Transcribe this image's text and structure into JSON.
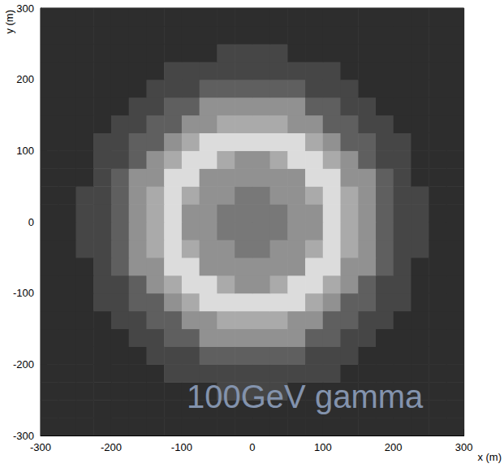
{
  "chart_data": {
    "type": "heatmap",
    "annotation": "100GeV gamma",
    "xlabel": "x (m)",
    "ylabel": "y (m)",
    "xlim": [
      -300,
      300
    ],
    "ylim": [
      -300,
      300
    ],
    "xticks": [
      -300,
      -200,
      -100,
      0,
      100,
      200,
      300
    ],
    "yticks": [
      -300,
      -200,
      -100,
      0,
      100,
      200,
      300
    ],
    "grid": false,
    "x_bins": [
      -300,
      -275,
      -250,
      -225,
      -200,
      -175,
      -150,
      -125,
      -100,
      -75,
      -50,
      -25,
      0,
      25,
      50,
      75,
      100,
      125,
      150,
      175,
      200,
      225,
      250,
      275,
      300
    ],
    "y_bins": [
      -300,
      -275,
      -250,
      -225,
      -200,
      -175,
      -150,
      -125,
      -100,
      -75,
      -50,
      -25,
      0,
      25,
      50,
      75,
      100,
      125,
      150,
      175,
      200,
      225,
      250,
      275,
      300
    ],
    "color_range": [
      0,
      9
    ],
    "cells": [
      [
        1,
        1,
        1,
        1,
        1,
        1,
        1,
        1,
        1,
        1,
        1,
        1,
        1,
        1,
        1,
        1,
        1,
        1,
        1,
        1,
        1,
        1,
        1,
        1
      ],
      [
        1,
        1,
        1,
        1,
        1,
        1,
        1,
        1,
        1,
        1,
        1,
        1,
        1,
        1,
        1,
        1,
        1,
        1,
        1,
        1,
        1,
        1,
        1,
        1
      ],
      [
        1,
        1,
        1,
        1,
        1,
        1,
        1,
        1,
        1,
        1,
        2,
        2,
        2,
        2,
        1,
        1,
        1,
        1,
        1,
        1,
        1,
        1,
        1,
        1
      ],
      [
        1,
        1,
        1,
        1,
        1,
        1,
        1,
        2,
        2,
        2,
        2,
        2,
        2,
        2,
        2,
        2,
        2,
        1,
        1,
        1,
        1,
        1,
        1,
        1
      ],
      [
        1,
        1,
        1,
        1,
        1,
        1,
        2,
        2,
        2,
        3,
        3,
        3,
        3,
        3,
        3,
        2,
        2,
        2,
        1,
        1,
        1,
        1,
        1,
        1
      ],
      [
        1,
        1,
        1,
        1,
        1,
        2,
        2,
        3,
        3,
        5,
        5,
        5,
        5,
        5,
        5,
        3,
        3,
        2,
        2,
        1,
        1,
        1,
        1,
        1
      ],
      [
        1,
        1,
        1,
        1,
        2,
        2,
        3,
        3,
        5,
        5,
        6,
        6,
        6,
        6,
        5,
        5,
        3,
        3,
        2,
        2,
        1,
        1,
        1,
        1
      ],
      [
        1,
        1,
        1,
        2,
        2,
        3,
        3,
        5,
        6,
        8,
        8,
        8,
        8,
        8,
        8,
        6,
        5,
        3,
        3,
        2,
        2,
        1,
        1,
        1
      ],
      [
        1,
        1,
        1,
        2,
        2,
        3,
        5,
        6,
        8,
        8,
        6,
        5,
        5,
        6,
        8,
        8,
        6,
        5,
        3,
        2,
        2,
        1,
        1,
        1
      ],
      [
        1,
        1,
        1,
        2,
        3,
        5,
        5,
        8,
        8,
        5,
        5,
        5,
        5,
        5,
        5,
        8,
        8,
        5,
        5,
        3,
        2,
        1,
        1,
        1
      ],
      [
        1,
        1,
        2,
        2,
        3,
        5,
        6,
        8,
        6,
        5,
        5,
        4,
        4,
        5,
        5,
        6,
        8,
        6,
        5,
        3,
        2,
        2,
        1,
        1
      ],
      [
        1,
        1,
        2,
        2,
        3,
        5,
        6,
        8,
        5,
        5,
        4,
        4,
        4,
        4,
        5,
        5,
        8,
        6,
        5,
        3,
        2,
        2,
        1,
        1
      ],
      [
        1,
        1,
        2,
        2,
        3,
        5,
        6,
        8,
        5,
        5,
        4,
        4,
        4,
        4,
        5,
        5,
        8,
        6,
        5,
        3,
        2,
        2,
        1,
        1
      ],
      [
        1,
        1,
        2,
        2,
        3,
        5,
        6,
        8,
        6,
        5,
        5,
        4,
        4,
        5,
        5,
        6,
        8,
        6,
        5,
        3,
        2,
        2,
        1,
        1
      ],
      [
        1,
        1,
        1,
        2,
        3,
        5,
        5,
        8,
        8,
        5,
        5,
        5,
        5,
        5,
        5,
        8,
        8,
        5,
        5,
        3,
        2,
        1,
        1,
        1
      ],
      [
        1,
        1,
        1,
        2,
        2,
        3,
        5,
        6,
        8,
        8,
        6,
        5,
        5,
        6,
        8,
        8,
        6,
        5,
        3,
        2,
        2,
        1,
        1,
        1
      ],
      [
        1,
        1,
        1,
        2,
        2,
        3,
        3,
        5,
        6,
        8,
        8,
        8,
        8,
        8,
        8,
        6,
        5,
        3,
        3,
        2,
        2,
        1,
        1,
        1
      ],
      [
        1,
        1,
        1,
        1,
        2,
        2,
        3,
        3,
        5,
        5,
        6,
        6,
        6,
        6,
        5,
        5,
        3,
        3,
        2,
        2,
        1,
        1,
        1,
        1
      ],
      [
        1,
        1,
        1,
        1,
        1,
        2,
        2,
        3,
        3,
        5,
        5,
        5,
        5,
        5,
        5,
        3,
        3,
        2,
        2,
        1,
        1,
        1,
        1,
        1
      ],
      [
        1,
        1,
        1,
        1,
        1,
        1,
        2,
        2,
        2,
        3,
        3,
        3,
        3,
        3,
        3,
        2,
        2,
        2,
        1,
        1,
        1,
        1,
        1,
        1
      ],
      [
        1,
        1,
        1,
        1,
        1,
        1,
        1,
        2,
        2,
        2,
        2,
        2,
        2,
        2,
        2,
        2,
        2,
        1,
        1,
        1,
        1,
        1,
        1,
        1
      ],
      [
        1,
        1,
        1,
        1,
        1,
        1,
        1,
        1,
        1,
        1,
        2,
        2,
        2,
        2,
        1,
        1,
        1,
        1,
        1,
        1,
        1,
        1,
        1,
        1
      ],
      [
        1,
        1,
        1,
        1,
        1,
        1,
        1,
        1,
        1,
        1,
        1,
        1,
        1,
        1,
        1,
        1,
        1,
        1,
        1,
        1,
        1,
        1,
        1,
        1
      ],
      [
        1,
        1,
        1,
        1,
        1,
        1,
        1,
        1,
        1,
        1,
        1,
        1,
        1,
        1,
        1,
        1,
        1,
        1,
        1,
        1,
        1,
        1,
        1,
        1
      ]
    ]
  }
}
